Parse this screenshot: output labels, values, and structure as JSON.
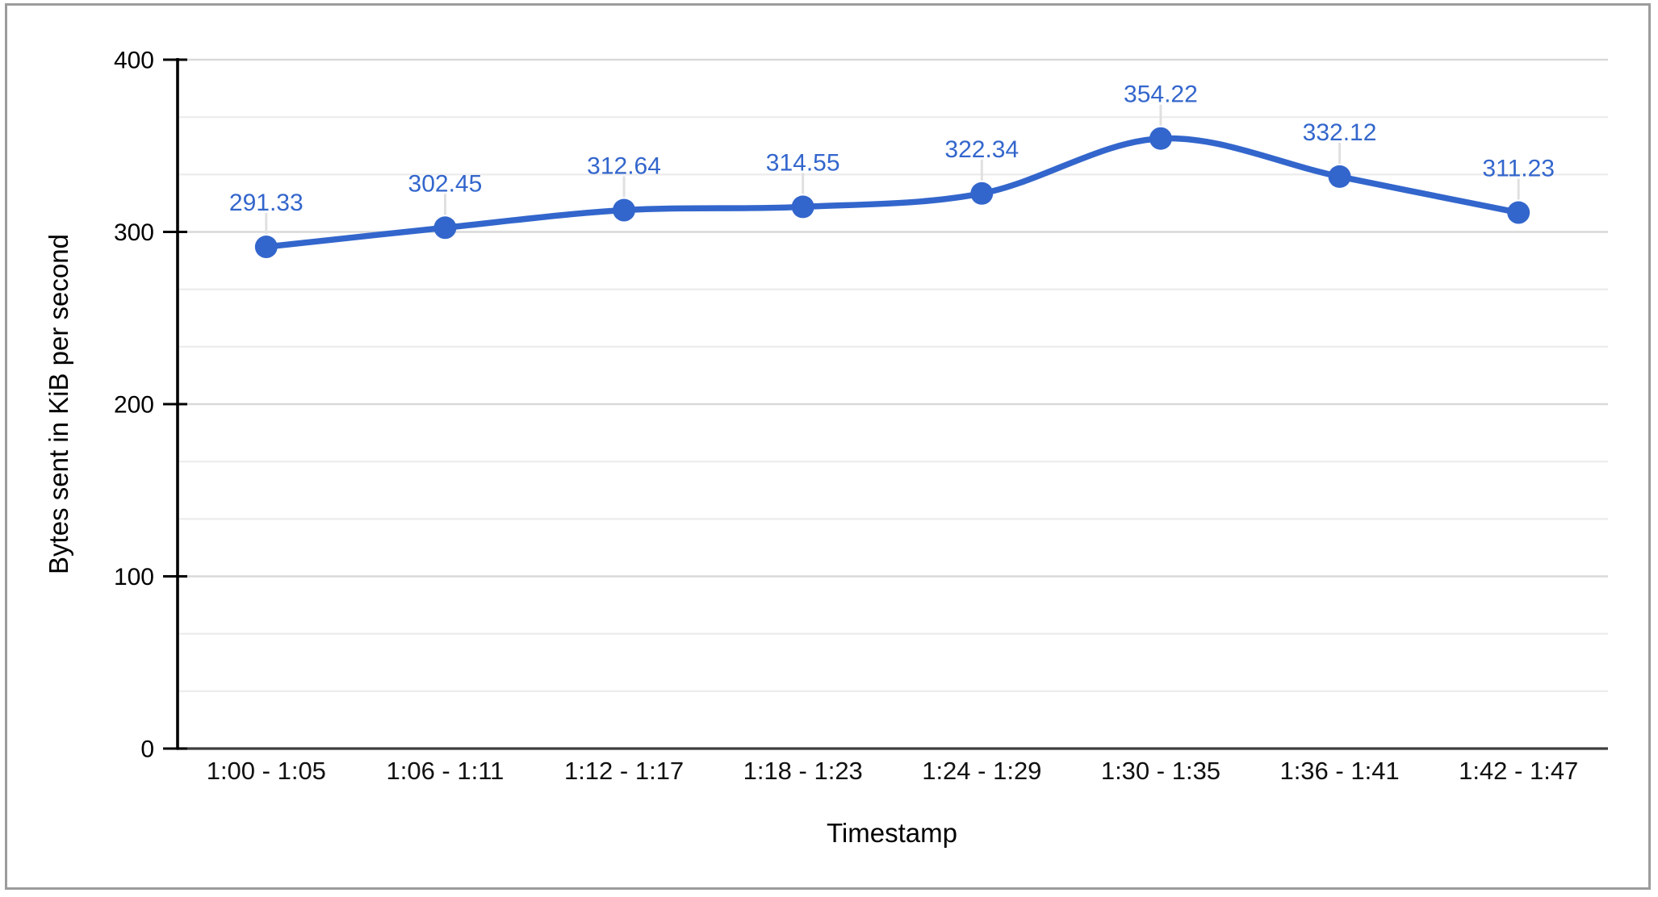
{
  "chart_data": {
    "type": "line",
    "title": "",
    "xlabel": "Timestamp",
    "ylabel": "Bytes sent in KiB per second",
    "categories": [
      "1:00 - 1:05",
      "1:06 - 1:11",
      "1:12 - 1:17",
      "1:18 - 1:23",
      "1:24 - 1:29",
      "1:30 - 1:35",
      "1:36 - 1:41",
      "1:42 - 1:47"
    ],
    "values": [
      291.33,
      302.45,
      312.64,
      314.55,
      322.34,
      354.22,
      332.12,
      311.23
    ],
    "point_labels": [
      "291.33",
      "302.45",
      "312.64",
      "314.55",
      "322.34",
      "354.22",
      "332.12",
      "311.23"
    ],
    "ylim": [
      0,
      400
    ],
    "yticks": [
      0,
      100,
      200,
      300,
      400
    ],
    "minor_gridlines_between_majors": 2,
    "curve": "smooth",
    "legend": "none",
    "grid": "on",
    "colors": {
      "series": "#3366cc",
      "data_label": "#3366cc",
      "major_gridline": "#d9d9d9",
      "minor_gridline": "#ededed",
      "baseline": "#3d3d3d",
      "axis": "#000000",
      "leader_line": "#e0e0e0",
      "frame_border": "#9c9c9c"
    }
  }
}
